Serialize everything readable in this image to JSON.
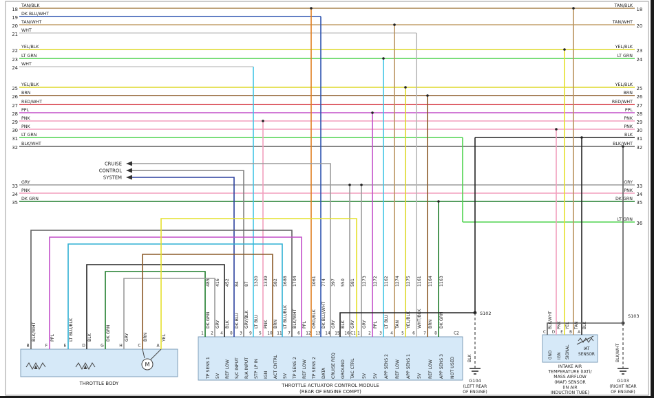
{
  "diagram": {
    "rows": [
      {
        "left_num": "18",
        "left_label": "TAN/BLK",
        "right_num": "18",
        "right_label": "TAN/BLK",
        "color": "TAN/BLK"
      },
      {
        "left_num": "19",
        "left_label": "DK BLU/WHT",
        "right_num": "",
        "right_label": "",
        "color": "DK BLU/WHT"
      },
      {
        "left_num": "20",
        "left_label": "TAN/WHT",
        "right_num": "20",
        "right_label": "TAN/WHT",
        "color": "TAN/WHT"
      },
      {
        "left_num": "21",
        "left_label": "WHT",
        "right_num": "",
        "right_label": "",
        "color": "WHT"
      },
      {
        "left_num": "22",
        "left_label": "YEL/BLK",
        "right_num": "23",
        "right_label": "YEL/BLK",
        "color": "YEL/BLK"
      },
      {
        "left_num": "23",
        "left_label": "LT GRN",
        "right_num": "24",
        "right_label": "LT GRN",
        "color": "LT GRN"
      },
      {
        "left_num": "24",
        "left_label": "WHT",
        "right_num": "",
        "right_label": "",
        "color": "WHT"
      },
      {
        "left_num": "25",
        "left_label": "YEL/BLK",
        "right_num": "25",
        "right_label": "YEL/BLK",
        "color": "YEL/BLK"
      },
      {
        "left_num": "26",
        "left_label": "BRN",
        "right_num": "26",
        "right_label": "BRN",
        "color": "BRN"
      },
      {
        "left_num": "27",
        "left_label": "RED/WHT",
        "right_num": "27",
        "right_label": "RED/WHT",
        "color": "RED/WHT"
      },
      {
        "left_num": "28",
        "left_label": "PPL",
        "right_num": "28",
        "right_label": "PPL",
        "color": "PPL"
      },
      {
        "left_num": "29",
        "left_label": "PNK",
        "right_num": "29",
        "right_label": "PNK",
        "color": "PNK"
      },
      {
        "left_num": "30",
        "left_label": "PNK",
        "right_num": "30",
        "right_label": "PNK",
        "color": "PNK"
      },
      {
        "left_num": "31",
        "left_label": "LT GRN",
        "right_num": "",
        "right_label": "",
        "color": "LT GRN"
      },
      {
        "left_num": "",
        "left_label": "",
        "right_num": "31",
        "right_label": "BLK",
        "color": "BLK"
      },
      {
        "left_num": "32",
        "left_label": "BLK/WHT",
        "right_num": "32",
        "right_label": "BLK/WHT",
        "color": "BLK/WHT"
      },
      {
        "left_num": "33",
        "left_label": "GRY",
        "right_num": "33",
        "right_label": "GRY",
        "color": "GRY"
      },
      {
        "left_num": "34",
        "left_label": "PNK",
        "right_num": "34",
        "right_label": "PNK",
        "color": "PNK"
      },
      {
        "left_num": "35",
        "left_label": "DK GRN",
        "right_num": "35",
        "right_label": "DK GRN",
        "color": "DK GRN"
      },
      {
        "left_num": "",
        "left_label": "",
        "right_num": "36",
        "right_label": "LT GRN",
        "color": "LT GRN"
      }
    ],
    "cruise": {
      "lines": [
        "CRUISE",
        "CONTROL",
        "SYSTEM"
      ]
    },
    "module": {
      "caption1": "THROTTLE ACTUATOR CONTROL MODULE",
      "caption2": "(REAR OF ENGINE COMPT)",
      "c1_label": "C1",
      "c2_label": "C2",
      "c1_pins": [
        {
          "pin": "1",
          "circuit": "485",
          "color": "DK GRN",
          "fn": "TP SENS 1"
        },
        {
          "pin": "2",
          "circuit": "416",
          "color": "GRY",
          "fn": "5V"
        },
        {
          "pin": "4",
          "circuit": "452",
          "color": "BLK",
          "fn": "REF LOW"
        },
        {
          "pin": "8",
          "circuit": "84",
          "color": "DK BLU",
          "fn": "S/C INPUT"
        },
        {
          "pin": "3",
          "circuit": "87",
          "color": "GRY/BLK",
          "fn": "R/A INPUT"
        },
        {
          "pin": "9",
          "circuit": "1320",
          "color": "LT BLU",
          "fn": "STP LP IN"
        },
        {
          "pin": "5",
          "circuit": "1339",
          "color": "PNK",
          "fn": "IGN"
        },
        {
          "pin": "10",
          "circuit": "582",
          "color": "BRN",
          "fn": "ACT CNTRL"
        },
        {
          "pin": "11",
          "circuit": "1688",
          "color": "LT BLU/BLK",
          "fn": "5V"
        },
        {
          "pin": "7",
          "circuit": "1704",
          "color": "BLK/WHT",
          "fn": "TP SENS 2"
        },
        {
          "pin": "6",
          "circuit": "",
          "color": "PPL",
          "fn": "REF LOW"
        },
        {
          "pin": "12",
          "circuit": "1061",
          "color": "ORG/BLK",
          "fn": "TP SENS 2"
        },
        {
          "pin": "13",
          "circuit": "774",
          "color": "DK BLU/WHT",
          "fn": "DATA"
        },
        {
          "pin": "14",
          "circuit": "397",
          "color": "GRY",
          "fn": "CRUISE REQ"
        },
        {
          "pin": "15",
          "circuit": "550",
          "color": "BLK",
          "fn": "GROUND"
        },
        {
          "pin": "16",
          "circuit": "581",
          "color": "GRY",
          "fn": "TAC CTRL"
        }
      ],
      "c2_pins": [
        {
          "pin": "1",
          "circuit": "1273",
          "color": "GRY",
          "fn": "5V"
        },
        {
          "pin": "2",
          "circuit": "1272",
          "color": "PPL",
          "fn": "5V"
        },
        {
          "pin": "3",
          "circuit": "1162",
          "color": "LT BLU",
          "fn": "APP SENS 2"
        },
        {
          "pin": "4",
          "circuit": "1274",
          "color": "TAN",
          "fn": "REF LOW"
        },
        {
          "pin": "5",
          "circuit": "1275",
          "color": "YEL/BLK",
          "fn": "APP SENS 1"
        },
        {
          "pin": "6",
          "circuit": "1161",
          "color": "WHT/BLK",
          "fn": "5V"
        },
        {
          "pin": "7",
          "circuit": "1164",
          "color": "BRN",
          "fn": "REF LOW"
        },
        {
          "pin": "8",
          "circuit": "1163",
          "color": "DK GRN",
          "fn": "APP SENS 3"
        },
        {
          "pin": "",
          "circuit": "",
          "color": "",
          "fn": "NOT USED"
        }
      ]
    },
    "throttle_body": {
      "caption": "THROTTLE BODY",
      "motor_label": "M",
      "terminals": [
        {
          "letter": "B",
          "color": "BLK/WHT"
        },
        {
          "letter": "F",
          "color": "PPL"
        },
        {
          "letter": "E",
          "color": "LT BLU/BLK"
        },
        {
          "letter": "D",
          "color": "BLK"
        },
        {
          "letter": "G",
          "color": "DK GRN"
        },
        {
          "letter": "H",
          "color": "GRY"
        },
        {
          "letter": "C",
          "color": "BRN"
        },
        {
          "letter": "A",
          "color": "YEL"
        }
      ]
    },
    "iat_sensor": {
      "caption_lines": [
        "INTAKE AIR",
        "TEMPERATURE (IAT)/",
        "MASS AIRFLOW",
        "(MAF) SENSOR",
        "(IN AIR",
        "INDUCTION TUBE)"
      ],
      "inner_label_lines": [
        "IAT",
        "SENSOR"
      ],
      "pins": [
        {
          "letter": "C",
          "color": "BLK/WHT",
          "fn": "GND"
        },
        {
          "letter": "D",
          "color": "PNK",
          "fn": "IGN"
        },
        {
          "letter": "E",
          "color": "YEL",
          "fn": "SIGNAL"
        },
        {
          "letter": "B",
          "color": "TAN",
          "fn": ""
        },
        {
          "letter": "A",
          "color": "BLK",
          "fn": ""
        }
      ]
    },
    "grounds": {
      "s102": {
        "splice": "S102",
        "wire": "BLK",
        "ground": "G104",
        "loc_lines": [
          "(LEFT REAR",
          "OF ENGINE)"
        ]
      },
      "s103": {
        "splice": "S103",
        "wire": "BLK/WHT",
        "ground": "G103",
        "loc_lines": [
          "(RIGHT REAR",
          "OF ENGINE)"
        ]
      }
    }
  },
  "palette": {
    "TAN/BLK": "#a8834f",
    "DK BLU/WHT": "#2f55b0",
    "TAN/WHT": "#c3a06b",
    "WHT": "#c9c9c9",
    "YEL/BLK": "#ddd829",
    "LT GRN": "#4fd44f",
    "BRN": "#8b5a28",
    "RED/WHT": "#d42f38",
    "PPL": "#c24fc9",
    "PNK": "#f29fbd",
    "BLK": "#232323",
    "BLK/WHT": "#5e5e5e",
    "GRY": "#9b9b9b",
    "DK GRN": "#1f7d2c",
    "DK BLU": "#2a3f9d",
    "GRY/BLK": "#818181",
    "LT BLU": "#3fc4e4",
    "LT BLU/BLK": "#2fb1d4",
    "ORG/BLK": "#e07f1f",
    "TAN": "#b9935d",
    "WHT/BLK": "#b5b5b5",
    "YEL": "#e4e02c"
  }
}
